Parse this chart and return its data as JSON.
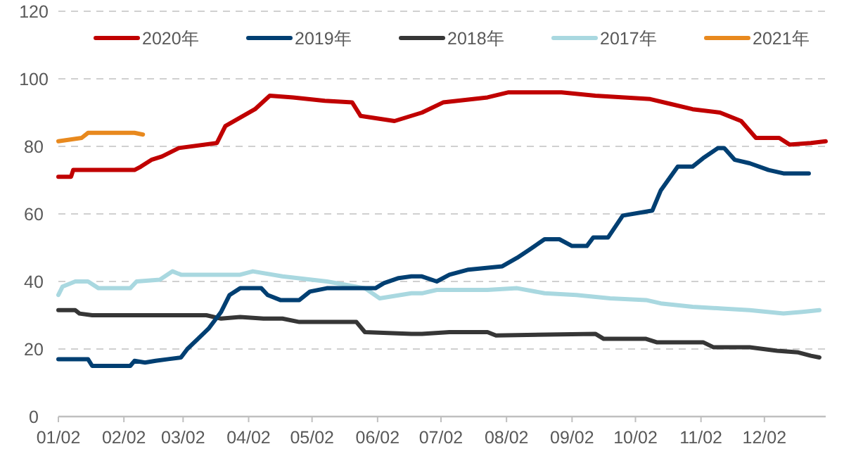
{
  "chart_data": {
    "type": "line",
    "xlim": [
      "--01-02",
      "--12-31"
    ],
    "ylim": [
      0,
      120
    ],
    "xticks": [
      {
        "value": "--01-02",
        "label": "01/02"
      },
      {
        "value": "--02-02",
        "label": "02/02"
      },
      {
        "value": "--03-02",
        "label": "03/02"
      },
      {
        "value": "--04-02",
        "label": "04/02"
      },
      {
        "value": "--05-02",
        "label": "05/02"
      },
      {
        "value": "--06-02",
        "label": "06/02"
      },
      {
        "value": "--07-02",
        "label": "07/02"
      },
      {
        "value": "--08-02",
        "label": "08/02"
      },
      {
        "value": "--09-02",
        "label": "09/02"
      },
      {
        "value": "--10-02",
        "label": "10/02"
      },
      {
        "value": "--11-02",
        "label": "11/02"
      },
      {
        "value": "--12-02",
        "label": "12/02"
      }
    ],
    "yticks": [
      0,
      20,
      40,
      60,
      80,
      100,
      120
    ],
    "grid": "y",
    "legend": "top",
    "series": [
      {
        "name": "2020年",
        "color": "#c00000",
        "x": [
          "--01-02",
          "--01-08",
          "--01-09",
          "--02-07",
          "--02-10",
          "--02-15",
          "--02-20",
          "--02-28",
          "--03-18",
          "--03-22",
          "--04-05",
          "--04-12",
          "--04-23",
          "--05-08",
          "--05-21",
          "--05-25",
          "--06-10",
          "--06-23",
          "--07-03",
          "--07-24",
          "--08-03",
          "--08-28",
          "--09-13",
          "--10-09",
          "--10-19",
          "--10-29",
          "--11-11",
          "--11-21",
          "--11-28",
          "--12-09",
          "--12-14",
          "--12-24",
          "--12-31"
        ],
        "values": [
          71,
          71,
          73,
          73,
          74,
          76,
          77,
          79.5,
          81,
          86,
          91,
          95,
          94.5,
          93.5,
          93,
          89,
          87.5,
          90,
          93,
          94.5,
          96,
          96,
          95,
          94,
          92.5,
          91,
          90,
          87.5,
          82.5,
          82.5,
          80.5,
          81,
          81.5
        ]
      },
      {
        "name": "2019年",
        "color": "#003f72",
        "x": [
          "--01-02",
          "--01-16",
          "--01-18",
          "--02-05",
          "--02-07",
          "--02-12",
          "--02-17",
          "--02-23",
          "--03-01",
          "--03-04",
          "--03-09",
          "--03-14",
          "--03-20",
          "--03-24",
          "--03-29",
          "--04-08",
          "--04-11",
          "--04-17",
          "--04-26",
          "--05-01",
          "--05-09",
          "--06-01",
          "--06-05",
          "--06-12",
          "--06-18",
          "--06-23",
          "--06-30",
          "--07-06",
          "--07-15",
          "--07-31",
          "--08-07",
          "--08-13",
          "--08-20",
          "--08-27",
          "--09-02",
          "--09-09",
          "--09-12",
          "--09-19",
          "--09-26",
          "--10-10",
          "--10-14",
          "--10-22",
          "--10-29",
          "--11-03",
          "--11-10",
          "--11-13",
          "--11-18",
          "--11-25",
          "--12-04",
          "--12-11",
          "--12-23"
        ],
        "values": [
          17,
          17,
          15,
          15,
          16.5,
          16,
          16.5,
          17,
          17.5,
          20,
          23,
          26,
          31,
          36,
          38,
          38,
          36,
          34.5,
          34.5,
          37,
          38,
          38,
          39.5,
          41,
          41.5,
          41.5,
          40,
          42,
          43.5,
          44.5,
          47,
          49.5,
          52.5,
          52.5,
          50.5,
          50.5,
          53,
          53,
          59.5,
          61,
          67,
          74,
          74,
          76.5,
          79.5,
          79.5,
          76,
          75,
          73,
          72,
          72
        ]
      },
      {
        "name": "2018年",
        "color": "#363636",
        "x": [
          "--01-02",
          "--01-10",
          "--01-12",
          "--01-18",
          "--03-13",
          "--03-20",
          "--03-29",
          "--04-09",
          "--04-18",
          "--04-26",
          "--05-23",
          "--05-27",
          "--06-18",
          "--06-23",
          "--07-06",
          "--07-24",
          "--07-28",
          "--09-13",
          "--09-17",
          "--10-07",
          "--10-12",
          "--11-03",
          "--11-08",
          "--11-25",
          "--12-08",
          "--12-18",
          "--12-24",
          "--12-28"
        ],
        "values": [
          31.5,
          31.5,
          30.5,
          30,
          30,
          29,
          29.5,
          29,
          29,
          28,
          28,
          25,
          24.5,
          24.5,
          25,
          25,
          24,
          24.5,
          23,
          23,
          22,
          22,
          20.5,
          20.5,
          19.5,
          19,
          18,
          17.5
        ]
      },
      {
        "name": "2017年",
        "color": "#a9d8e0",
        "x": [
          "--01-02",
          "--01-04",
          "--01-10",
          "--01-16",
          "--01-21",
          "--02-05",
          "--02-08",
          "--02-19",
          "--02-25",
          "--03-01",
          "--03-29",
          "--04-04",
          "--04-18",
          "--05-09",
          "--05-27",
          "--06-03",
          "--06-18",
          "--06-23",
          "--06-30",
          "--07-24",
          "--08-07",
          "--08-20",
          "--09-04",
          "--09-20",
          "--10-07",
          "--10-14",
          "--10-29",
          "--11-12",
          "--11-25",
          "--12-11",
          "--12-20",
          "--12-28"
        ],
        "values": [
          36,
          38.5,
          40,
          40,
          38,
          38,
          40,
          40.5,
          43,
          42,
          42,
          43,
          41.5,
          40,
          38,
          35,
          36.5,
          36.5,
          37.5,
          37.5,
          38,
          36.5,
          36,
          35,
          34.5,
          33.5,
          32.5,
          32,
          31.5,
          30.5,
          31,
          31.5
        ]
      },
      {
        "name": "2021年",
        "color": "#e8891e",
        "x": [
          "--01-02",
          "--01-13",
          "--01-16",
          "--02-07",
          "--02-11"
        ],
        "values": [
          81.5,
          82.5,
          84,
          84,
          83.5
        ]
      }
    ]
  }
}
